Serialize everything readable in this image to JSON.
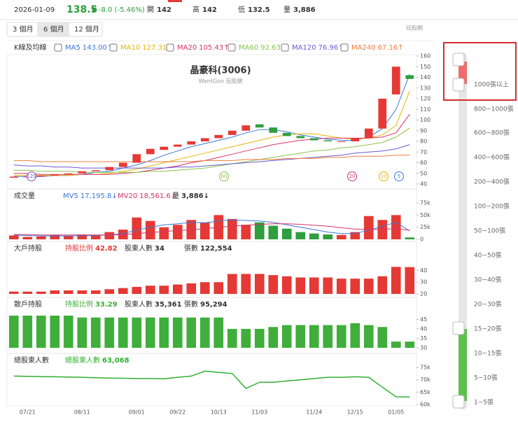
{
  "header": {
    "date": "2026-01-09",
    "price": "138.5",
    "change": "▼ -8.0 (-5.46%)",
    "items": [
      {
        "label": "開",
        "value": "142"
      },
      {
        "label": "高",
        "value": "142"
      },
      {
        "label": "低",
        "value": "132.5"
      },
      {
        "label": "量",
        "value": "3,886"
      }
    ]
  },
  "tabs": [
    "3 個月",
    "6 個月",
    "12 個月"
  ],
  "logo": "玩股網",
  "ma_title": "K線及均線",
  "chart_data": [
    {
      "type": "candlestick",
      "title": "晶豪科(3006)",
      "subtitle": "WantGoo 玩股網",
      "categories": [
        null,
        "07/21",
        null,
        null,
        null,
        "08/11",
        null,
        null,
        null,
        "09/01",
        null,
        null,
        "09/22",
        null,
        null,
        "10/13",
        null,
        null,
        "11/03",
        null,
        null,
        null,
        "11/24",
        null,
        null,
        "12/15",
        null,
        null,
        "01/05",
        null
      ],
      "open": [
        46,
        47,
        47,
        48,
        49,
        50,
        52,
        53,
        56,
        60,
        68,
        72,
        75,
        77,
        80,
        83,
        86,
        90,
        96,
        93,
        88,
        85,
        83,
        81,
        80,
        80,
        83,
        92,
        124,
        142
      ],
      "close": [
        47,
        47,
        48,
        49,
        50,
        52,
        53,
        56,
        60,
        68,
        73,
        75,
        77,
        80,
        83,
        86,
        90,
        95,
        93,
        88,
        85,
        83,
        81,
        80,
        80,
        83,
        92,
        120,
        150,
        138.5
      ],
      "up_color": "#e53935",
      "down_color": "#2e9e3e",
      "series": [
        {
          "name": "MA5",
          "last_label": "143.00↑",
          "color": "#3a78d8",
          "values": [
            47,
            47,
            47,
            48,
            48,
            49,
            51,
            52,
            55,
            58,
            62,
            67,
            71,
            75,
            78,
            81,
            84,
            88,
            91,
            91,
            89,
            86,
            84,
            82,
            81,
            81,
            84,
            92,
            110,
            143.0
          ]
        },
        {
          "name": "MA10",
          "last_label": "127.31↑",
          "color": "#e8b400",
          "values": [
            48,
            48,
            48,
            48,
            48,
            49,
            49,
            50,
            52,
            54,
            57,
            60,
            63,
            66,
            69,
            72,
            75,
            78,
            81,
            84,
            86,
            87,
            87,
            85,
            83,
            82,
            83,
            86,
            95,
            127.31
          ]
        },
        {
          "name": "MA20",
          "last_label": "105.43↑",
          "color": "#d6336c",
          "values": [
            50,
            50,
            49,
            49,
            49,
            49,
            49,
            49,
            50,
            51,
            53,
            55,
            57,
            60,
            62,
            65,
            68,
            71,
            74,
            77,
            79,
            81,
            82,
            83,
            83,
            83,
            83,
            84,
            88,
            105.43
          ]
        },
        {
          "name": "MA60",
          "last_label": "92.63↑",
          "color": "#8bc34a",
          "values": [
            53,
            53,
            52,
            52,
            52,
            51,
            51,
            51,
            51,
            51,
            52,
            52,
            53,
            54,
            55,
            57,
            59,
            61,
            63,
            65,
            67,
            69,
            71,
            72,
            74,
            75,
            77,
            79,
            84,
            92.63
          ]
        },
        {
          "name": "MA120",
          "last_label": "76.96↑",
          "color": "#6a5acd",
          "values": [
            58,
            57,
            57,
            56,
            56,
            55,
            55,
            55,
            55,
            55,
            55,
            55,
            56,
            56,
            57,
            58,
            59,
            60,
            61,
            62,
            63,
            64,
            65,
            66,
            67,
            69,
            70,
            71,
            73,
            76.96
          ]
        },
        {
          "name": "MA240",
          "last_label": "67.16↑",
          "color": "#f07c3c",
          "values": [
            62,
            62,
            61,
            61,
            61,
            61,
            61,
            61,
            61,
            61,
            61,
            61,
            61,
            61,
            62,
            62,
            62,
            63,
            63,
            63,
            64,
            64,
            64,
            65,
            65,
            66,
            66,
            66,
            67,
            67.16
          ]
        }
      ],
      "markers": [
        {
          "label": "120",
          "color": "#7b52c9"
        },
        {
          "label": "60",
          "color": "#8bc34a"
        },
        {
          "label": "20",
          "color": "#d6336c"
        },
        {
          "label": "10",
          "color": "#e8b400"
        },
        {
          "label": "5",
          "color": "#3a78d8"
        }
      ],
      "ylim": [
        40,
        160
      ],
      "yticks": [
        40,
        50,
        60,
        70,
        80,
        90,
        100,
        110,
        120,
        130,
        140,
        150,
        160
      ]
    },
    {
      "type": "bar",
      "title": "成交量",
      "values": [
        8000,
        5000,
        6000,
        9000,
        7000,
        10000,
        9000,
        15000,
        20000,
        45000,
        38000,
        25000,
        30000,
        40000,
        35000,
        50000,
        42000,
        30000,
        35000,
        28000,
        22000,
        15000,
        12000,
        10000,
        9000,
        15000,
        48000,
        40000,
        50000,
        3886
      ],
      "lines": [
        {
          "name": "MV5",
          "last_label": "17,195.8↓",
          "color": "#3a78d8",
          "values": [
            9000,
            8000,
            7000,
            7000,
            7000,
            7500,
            8000,
            9000,
            12000,
            19000,
            25000,
            30000,
            32000,
            35000,
            34000,
            38000,
            40000,
            39000,
            38000,
            35000,
            30000,
            25000,
            20000,
            15000,
            12000,
            12000,
            19000,
            27000,
            35000,
            17195.8
          ]
        },
        {
          "name": "MV20",
          "last_label": "18,561.6↓",
          "color": "#d6336c",
          "values": [
            10000,
            10000,
            9000,
            9000,
            9000,
            9000,
            9000,
            9000,
            10000,
            12000,
            14000,
            16000,
            18000,
            20000,
            22000,
            25000,
            27000,
            29000,
            31000,
            32000,
            32000,
            31000,
            29000,
            27000,
            24000,
            21000,
            20000,
            21000,
            22000,
            18561.6
          ]
        }
      ],
      "stats": [
        {
          "name": "量",
          "value": "3,886↓",
          "color": "#333"
        }
      ],
      "ylim": [
        0,
        75000
      ],
      "yticks": [
        0,
        {
          "value": 25000,
          "label": "25k"
        },
        {
          "value": 50000,
          "label": "50k"
        },
        {
          "value": 75000,
          "label": "75k"
        }
      ]
    },
    {
      "type": "bar",
      "title": "大戶持股",
      "color": "#e53935",
      "values": [
        22,
        22,
        22,
        23,
        23,
        23,
        23,
        24,
        25,
        26,
        27,
        27,
        28,
        29,
        30,
        30,
        37,
        37,
        37,
        36,
        35,
        34,
        34,
        34,
        33,
        33,
        33,
        35,
        43,
        42.82
      ],
      "stats": [
        {
          "name": "持股比例",
          "value": "42.82",
          "color": "#e53935"
        },
        {
          "name": "股東人數",
          "value": "34",
          "color": "#333"
        },
        {
          "name": "張數",
          "value": "122,554",
          "color": "#333"
        }
      ],
      "ylim": [
        20,
        45
      ],
      "yticks": [
        20,
        30,
        40
      ]
    },
    {
      "type": "bar",
      "title": "散戶持股",
      "color": "#3fae3a",
      "values": [
        47,
        47,
        47,
        47,
        47,
        46,
        46,
        46,
        46,
        46,
        46,
        46,
        46,
        46,
        46,
        46,
        40,
        40,
        40,
        41,
        42,
        42,
        42,
        42,
        42,
        43,
        42,
        41,
        33.3,
        33.29
      ],
      "stats": [
        {
          "name": "持股比例",
          "value": "33.29",
          "color": "#3fae3a"
        },
        {
          "name": "股東人數",
          "value": "35,361",
          "color": "#333"
        },
        {
          "name": "張數",
          "value": "95,294",
          "color": "#333"
        }
      ],
      "ylim": [
        30,
        47
      ],
      "yticks": [
        30,
        35,
        40,
        45
      ]
    },
    {
      "type": "line",
      "title": "總股東人數",
      "color": "#2fb12f",
      "values": [
        71500,
        71400,
        71300,
        71200,
        71100,
        71000,
        70800,
        70700,
        70600,
        70500,
        70500,
        70400,
        71000,
        71500,
        73500,
        73000,
        72500,
        66500,
        69000,
        69000,
        69500,
        70000,
        70500,
        71000,
        71000,
        71200,
        71000,
        67000,
        63100,
        63068
      ],
      "stats": [
        {
          "name": "總股東人數",
          "value": "63,068",
          "color": "#2fb12f"
        }
      ],
      "ylim": [
        60000,
        75000
      ],
      "yticks": [
        {
          "value": 60000,
          "label": "60k"
        },
        {
          "value": 65000,
          "label": "65k"
        },
        {
          "value": 70000,
          "label": "70k"
        },
        {
          "value": 75000,
          "label": "75k"
        }
      ]
    }
  ],
  "filter": [
    "1000張以上",
    "800~1000張",
    "600~800張",
    "400~600張",
    "200~400張",
    "100~200張",
    "50~100張",
    "40~50張",
    "30~40張",
    "20~30張",
    "15~20張",
    "10~15張",
    "5~10張",
    "1~5張"
  ]
}
